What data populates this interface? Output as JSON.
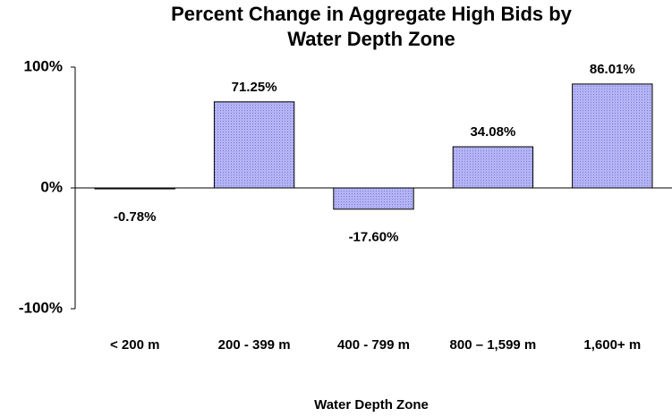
{
  "chart_data": {
    "type": "bar",
    "title": "Percent Change in Aggregate High Bids by Water Depth Zone",
    "x_label": "Water Depth Zone",
    "categories": [
      "< 200 m",
      "200 - 399 m",
      "400 - 799 m",
      "800 – 1,599 m",
      "1,600+ m"
    ],
    "values": [
      -0.78,
      71.25,
      -17.6,
      34.08,
      86.01
    ],
    "value_labels": [
      "-0.78%",
      "71.25%",
      "-17.60%",
      "34.08%",
      "86.01%"
    ],
    "color": "#a3a3f0",
    "ylim": [
      -100,
      100
    ],
    "yticks": [
      {
        "value": -100,
        "label": "-100%"
      },
      {
        "value": 0,
        "label": "0%"
      },
      {
        "value": 100,
        "label": "100%"
      }
    ],
    "grid": false
  }
}
